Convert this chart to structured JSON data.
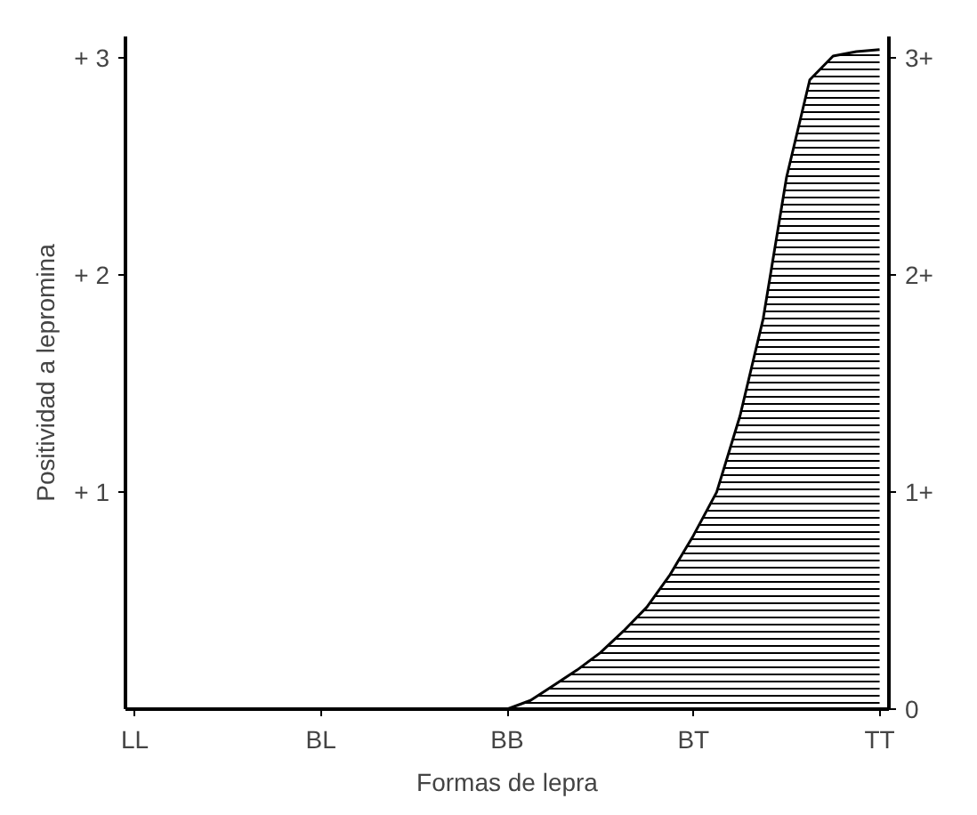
{
  "chart_data": {
    "type": "area",
    "xlabel": "Formas de lepra",
    "ylabel": "Positividad a lepromina",
    "categories": [
      "LL",
      null,
      null,
      null,
      null,
      null,
      null,
      null,
      "BL",
      null,
      null,
      null,
      null,
      null,
      null,
      null,
      "BB",
      null,
      null,
      null,
      null,
      null,
      null,
      null,
      "BT",
      null,
      null,
      null,
      null,
      null,
      null,
      null,
      "TT"
    ],
    "series": [
      {
        "color": "#000000",
        "values": [
          0,
          0,
          0,
          0,
          0,
          0,
          0,
          0,
          0,
          0,
          0,
          0,
          0,
          0,
          0,
          0,
          0,
          0.04,
          0.11,
          0.18,
          0.26,
          0.36,
          0.47,
          0.62,
          0.8,
          1.0,
          1.35,
          1.8,
          2.45,
          2.9,
          3.01,
          3.03,
          3.04
        ]
      }
    ],
    "ylim": [
      0,
      3.1
    ],
    "yticks": [
      {
        "value": 1,
        "label": "+ 1"
      },
      {
        "value": 2,
        "label": "+ 2"
      },
      {
        "value": 3,
        "label": "+ 3"
      }
    ],
    "annotations": [
      "0",
      "1+",
      "2+",
      "3+"
    ],
    "grid": false
  }
}
